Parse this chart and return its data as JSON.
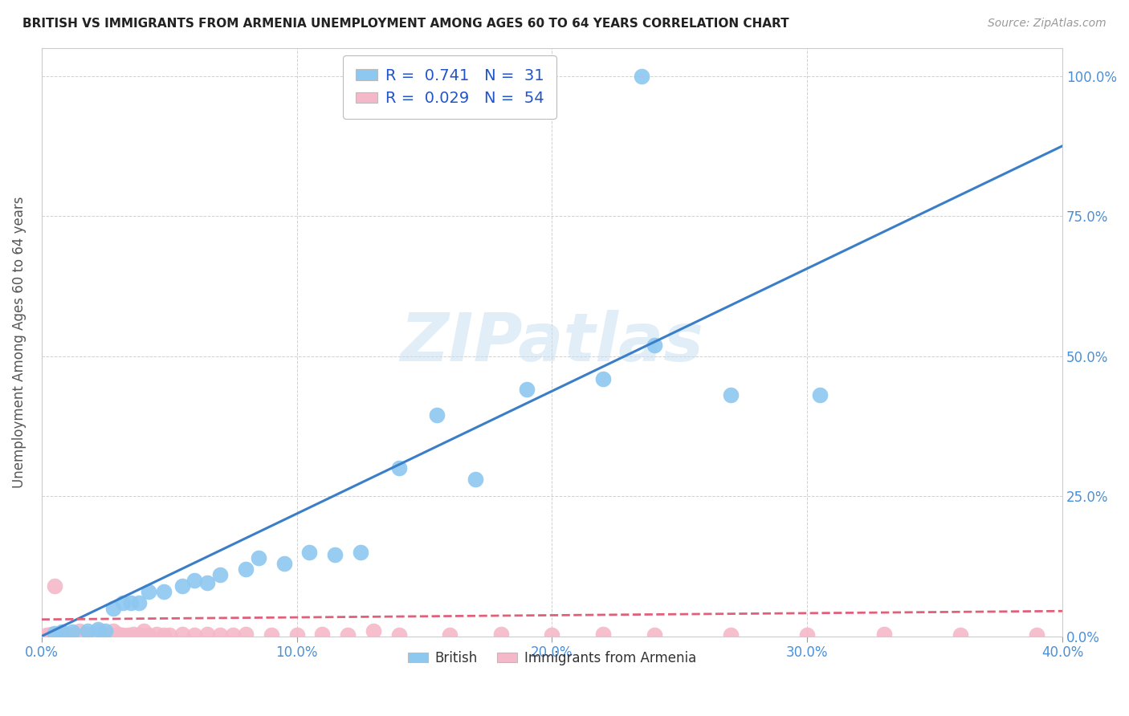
{
  "title": "BRITISH VS IMMIGRANTS FROM ARMENIA UNEMPLOYMENT AMONG AGES 60 TO 64 YEARS CORRELATION CHART",
  "source": "Source: ZipAtlas.com",
  "ylabel": "Unemployment Among Ages 60 to 64 years",
  "xlim": [
    0.0,
    0.4
  ],
  "ylim": [
    0.0,
    1.05
  ],
  "xticks": [
    0.0,
    0.1,
    0.2,
    0.3,
    0.4
  ],
  "xticklabels": [
    "0.0%",
    "10.0%",
    "20.0%",
    "30.0%",
    "40.0%"
  ],
  "yticks": [
    0.0,
    0.25,
    0.5,
    0.75,
    1.0
  ],
  "yticklabels": [
    "0.0%",
    "25.0%",
    "50.0%",
    "75.0%",
    "100.0%"
  ],
  "british_color": "#8DC8F0",
  "armenia_color": "#F5B8C8",
  "british_line_color": "#3A7EC8",
  "armenia_line_color": "#E0607A",
  "R_british": 0.741,
  "N_british": 31,
  "R_armenia": 0.029,
  "N_armenia": 54,
  "watermark": "ZIPatlas",
  "british_x": [
    0.005,
    0.008,
    0.012,
    0.018,
    0.022,
    0.025,
    0.028,
    0.032,
    0.035,
    0.038,
    0.042,
    0.048,
    0.055,
    0.06,
    0.065,
    0.07,
    0.08,
    0.085,
    0.095,
    0.105,
    0.115,
    0.125,
    0.14,
    0.155,
    0.17,
    0.19,
    0.22,
    0.24,
    0.27,
    0.305,
    0.235
  ],
  "british_y": [
    0.005,
    0.008,
    0.008,
    0.01,
    0.012,
    0.01,
    0.05,
    0.06,
    0.06,
    0.06,
    0.08,
    0.08,
    0.09,
    0.1,
    0.095,
    0.11,
    0.12,
    0.14,
    0.13,
    0.15,
    0.145,
    0.15,
    0.3,
    0.395,
    0.28,
    0.44,
    0.46,
    0.52,
    0.43,
    0.43,
    1.0
  ],
  "armenia_x": [
    0.002,
    0.003,
    0.004,
    0.005,
    0.006,
    0.007,
    0.008,
    0.009,
    0.01,
    0.011,
    0.012,
    0.013,
    0.014,
    0.015,
    0.016,
    0.018,
    0.02,
    0.022,
    0.024,
    0.026,
    0.028,
    0.03,
    0.032,
    0.034,
    0.036,
    0.038,
    0.04,
    0.042,
    0.045,
    0.048,
    0.05,
    0.055,
    0.06,
    0.065,
    0.07,
    0.075,
    0.08,
    0.09,
    0.1,
    0.11,
    0.12,
    0.13,
    0.14,
    0.16,
    0.18,
    0.2,
    0.22,
    0.24,
    0.27,
    0.3,
    0.33,
    0.36,
    0.39,
    0.005
  ],
  "armenia_y": [
    0.002,
    0.003,
    0.004,
    0.002,
    0.003,
    0.003,
    0.004,
    0.002,
    0.003,
    0.003,
    0.002,
    0.004,
    0.003,
    0.01,
    0.003,
    0.004,
    0.003,
    0.01,
    0.004,
    0.003,
    0.01,
    0.004,
    0.003,
    0.003,
    0.004,
    0.003,
    0.01,
    0.003,
    0.004,
    0.003,
    0.003,
    0.004,
    0.003,
    0.004,
    0.003,
    0.003,
    0.004,
    0.003,
    0.003,
    0.004,
    0.003,
    0.01,
    0.003,
    0.003,
    0.004,
    0.003,
    0.004,
    0.003,
    0.003,
    0.003,
    0.004,
    0.003,
    0.003,
    0.09
  ],
  "blue_line_x": [
    0.0,
    0.4
  ],
  "blue_line_y": [
    0.0,
    0.875
  ],
  "pink_line_x": [
    0.0,
    0.4
  ],
  "pink_line_y": [
    0.03,
    0.045
  ]
}
